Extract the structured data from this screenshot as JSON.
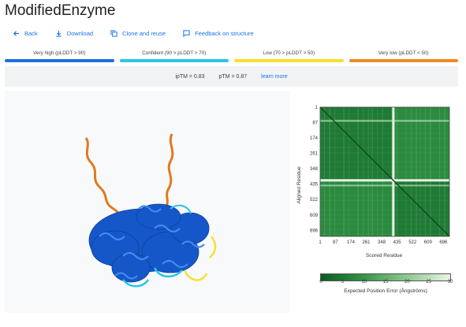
{
  "title": "ModifiedEnzyme",
  "toolbar": {
    "back": "Back",
    "download": "Download",
    "clone": "Clone and reuse",
    "feedback": "Feedback on structure"
  },
  "legend": [
    {
      "label": "Very high (pLDDT > 90)",
      "color": "#1a6fe0"
    },
    {
      "label": "Confident (90 > pLDDT > 70)",
      "color": "#2bc4e8"
    },
    {
      "label": "Low (70 > pLDDT > 50)",
      "color": "#f5e030"
    },
    {
      "label": "Very low (pLDDT < 50)",
      "color": "#f08a24"
    }
  ],
  "metrics": {
    "iptm": "ipTM = 0.83",
    "ptm": "pTM = 0.87",
    "learn_more": "learn more"
  },
  "pae": {
    "y_label": "Aligned Residue",
    "x_label": "Scored Residue",
    "ticks": [
      "1",
      "87",
      "174",
      "261",
      "348",
      "435",
      "522",
      "609",
      "696"
    ],
    "colorbar_ticks": [
      "0",
      "5",
      "10",
      "15",
      "20",
      "25",
      "30"
    ],
    "colorbar_label": "Expected Position Error (Ångströms)",
    "chain_break_residue": 412,
    "total_residues": 730
  },
  "colors": {
    "accent": "#1a73e8",
    "pae_dark": "#1e7a34",
    "pae_light": "#eaf6e6"
  }
}
